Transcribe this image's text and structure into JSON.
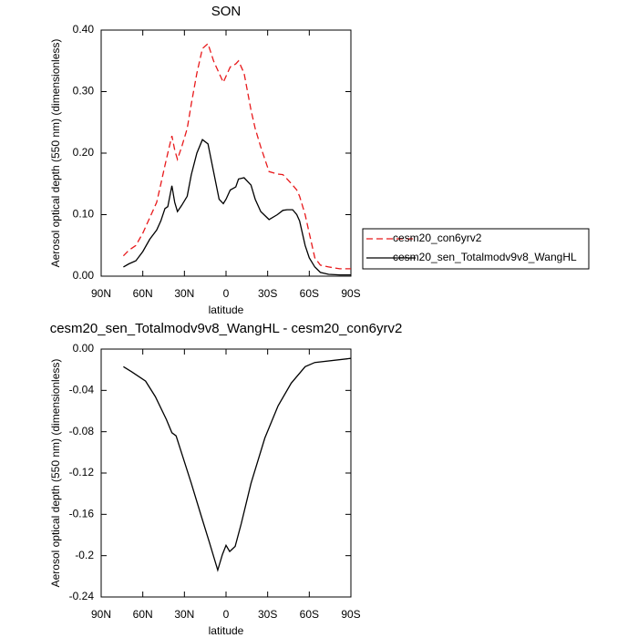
{
  "chart_data": [
    {
      "type": "line",
      "title": "SON",
      "xlabel": "latitude",
      "ylabel": "Aerosol optical depth (550 nm) (dimensionless)",
      "xlim": [
        90,
        -90
      ],
      "xticks": [
        {
          "value": 90,
          "label": "90N"
        },
        {
          "value": 60,
          "label": "60N"
        },
        {
          "value": 30,
          "label": "30N"
        },
        0,
        {
          "value": -30,
          "label": "30S"
        },
        {
          "value": -60,
          "label": "60S"
        },
        {
          "value": -90,
          "label": "90S"
        }
      ],
      "ylim": [
        0,
        0.4
      ],
      "yticks": [
        {
          "value": 0,
          "label": "0.00"
        },
        {
          "value": 0.1,
          "label": "0.10"
        },
        {
          "value": 0.2,
          "label": "0.20"
        },
        {
          "value": 0.3,
          "label": "0.30"
        },
        {
          "value": 0.4,
          "label": "0.40"
        }
      ],
      "x": [
        74,
        70,
        65,
        60,
        55,
        50,
        47,
        44,
        42,
        39,
        37,
        35,
        32,
        28,
        25,
        21,
        17,
        13,
        9,
        5,
        2,
        0,
        -3,
        -7,
        -9,
        -13,
        -18,
        -21,
        -25,
        -31,
        -37,
        -41,
        -44,
        -48,
        -51,
        -53,
        -57,
        -60,
        -64,
        -68,
        -74,
        -82,
        -90
      ],
      "legend": "outside-right",
      "series": [
        {
          "name": "cesm20_con6yrv2",
          "color": "#e8191b",
          "line_style": "dashed",
          "values": [
            0.033,
            0.042,
            0.05,
            0.07,
            0.095,
            0.12,
            0.15,
            0.18,
            0.2,
            0.228,
            0.205,
            0.19,
            0.21,
            0.24,
            0.28,
            0.33,
            0.37,
            0.378,
            0.35,
            0.33,
            0.315,
            0.325,
            0.34,
            0.345,
            0.35,
            0.33,
            0.27,
            0.24,
            0.21,
            0.17,
            0.166,
            0.165,
            0.158,
            0.148,
            0.14,
            0.13,
            0.1,
            0.07,
            0.03,
            0.018,
            0.015,
            0.012,
            0.012
          ]
        },
        {
          "name": "cesm20_sen_Totalmodv9v8_WangHL",
          "color": "#000000",
          "line_style": "solid",
          "values": [
            0.015,
            0.02,
            0.025,
            0.04,
            0.06,
            0.075,
            0.09,
            0.11,
            0.113,
            0.147,
            0.12,
            0.105,
            0.115,
            0.13,
            0.165,
            0.2,
            0.222,
            0.215,
            0.17,
            0.125,
            0.118,
            0.125,
            0.14,
            0.145,
            0.158,
            0.16,
            0.148,
            0.125,
            0.105,
            0.092,
            0.1,
            0.107,
            0.108,
            0.108,
            0.1,
            0.09,
            0.05,
            0.03,
            0.015,
            0.006,
            0.003,
            0.002,
            0.002
          ]
        }
      ]
    },
    {
      "type": "line",
      "title": "cesm20_sen_Totalmodv9v8_WangHL - cesm20_con6yrv2",
      "xlabel": "latitude",
      "ylabel": "Aerosol optical depth (550 nm) (dimensionless)",
      "xlim": [
        90,
        -90
      ],
      "xticks": [
        {
          "value": 90,
          "label": "90N"
        },
        {
          "value": 60,
          "label": "60N"
        },
        {
          "value": 30,
          "label": "30N"
        },
        0,
        {
          "value": -30,
          "label": "30S"
        },
        {
          "value": -60,
          "label": "60S"
        },
        {
          "value": -90,
          "label": "90S"
        }
      ],
      "ylim": [
        -0.24,
        0
      ],
      "yticks": [
        {
          "value": 0,
          "label": "0.00"
        },
        -0.04,
        -0.08,
        -0.12,
        -0.16,
        -0.2,
        -0.24
      ],
      "x": [
        74,
        68,
        58,
        51,
        43,
        39,
        36,
        31.5,
        25,
        18,
        12,
        6,
        2.6,
        0,
        -2.6,
        -6.6,
        -11,
        -18,
        -28,
        -37.5,
        -47,
        -57,
        -64,
        -90
      ],
      "series": [
        {
          "name": "cesm20_sen_Totalmodv9v8_WangHL - cesm20_con6yrv2",
          "color": "#000000",
          "line_style": "solid",
          "values": [
            -0.017,
            -0.022,
            -0.031,
            -0.046,
            -0.068,
            -0.081,
            -0.084,
            -0.103,
            -0.13,
            -0.161,
            -0.187,
            -0.214,
            -0.199,
            -0.19,
            -0.196,
            -0.191,
            -0.169,
            -0.13,
            -0.086,
            -0.055,
            -0.033,
            -0.017,
            -0.013,
            -0.009
          ]
        }
      ]
    }
  ]
}
